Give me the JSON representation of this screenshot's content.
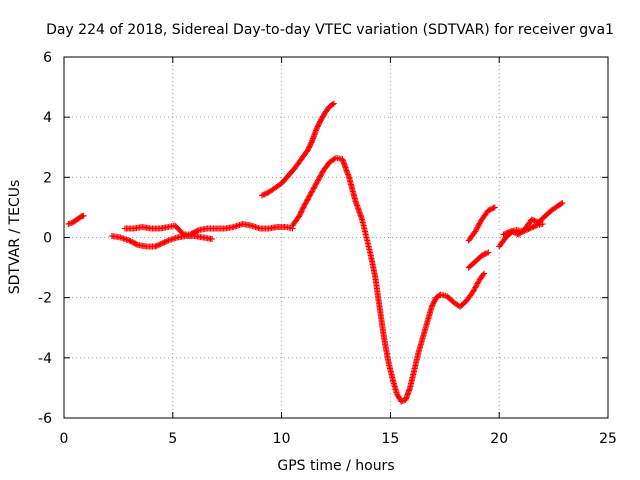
{
  "chart_data": {
    "type": "scatter",
    "title": "Day 224 of 2018, Sidereal Day-to-day VTEC variation (SDTVAR) for receiver gva1",
    "xlabel": "GPS time / hours",
    "ylabel": "SDTVAR / TECUs",
    "xlim": [
      0,
      25
    ],
    "ylim": [
      -6,
      6
    ],
    "xticks": [
      0,
      5,
      10,
      15,
      20,
      25
    ],
    "yticks": [
      -6,
      -4,
      -2,
      0,
      2,
      4,
      6
    ],
    "grid": true,
    "marker": "+",
    "color": "#ff0000",
    "series": [
      {
        "segments": [
          [
            [
              0.2,
              0.45
            ],
            [
              0.4,
              0.5
            ],
            [
              0.6,
              0.6
            ],
            [
              0.8,
              0.7
            ],
            [
              0.9,
              0.72
            ]
          ],
          [
            [
              2.2,
              0.05
            ],
            [
              2.6,
              0.0
            ],
            [
              3.0,
              -0.1
            ],
            [
              3.4,
              -0.25
            ],
            [
              3.8,
              -0.3
            ],
            [
              4.2,
              -0.3
            ],
            [
              4.5,
              -0.2
            ],
            [
              4.8,
              -0.1
            ],
            [
              5.2,
              0.0
            ],
            [
              5.6,
              0.05
            ],
            [
              6.0,
              0.05
            ],
            [
              6.4,
              0.0
            ],
            [
              6.8,
              -0.05
            ]
          ],
          [
            [
              2.8,
              0.3
            ],
            [
              3.2,
              0.3
            ],
            [
              3.6,
              0.35
            ],
            [
              4.0,
              0.3
            ],
            [
              4.4,
              0.3
            ],
            [
              4.8,
              0.35
            ],
            [
              5.1,
              0.4
            ],
            [
              5.5,
              0.1
            ],
            [
              5.8,
              0.1
            ],
            [
              6.2,
              0.25
            ],
            [
              6.6,
              0.3
            ],
            [
              7.0,
              0.3
            ],
            [
              7.4,
              0.3
            ],
            [
              7.8,
              0.35
            ],
            [
              8.2,
              0.45
            ],
            [
              8.6,
              0.4
            ],
            [
              9.0,
              0.3
            ],
            [
              9.4,
              0.3
            ],
            [
              9.8,
              0.35
            ],
            [
              10.2,
              0.35
            ],
            [
              10.5,
              0.3
            ]
          ],
          [
            [
              10.5,
              0.4
            ],
            [
              10.8,
              0.7
            ],
            [
              11.0,
              1.0
            ],
            [
              11.3,
              1.4
            ],
            [
              11.6,
              1.8
            ],
            [
              11.9,
              2.2
            ],
            [
              12.2,
              2.5
            ],
            [
              12.5,
              2.65
            ],
            [
              12.8,
              2.6
            ],
            [
              13.1,
              2.0
            ],
            [
              13.4,
              1.2
            ],
            [
              13.7,
              0.6
            ],
            [
              13.9,
              0.0
            ],
            [
              14.1,
              -0.6
            ],
            [
              14.3,
              -1.3
            ],
            [
              14.5,
              -2.3
            ],
            [
              14.7,
              -3.3
            ],
            [
              14.9,
              -4.1
            ],
            [
              15.1,
              -4.7
            ],
            [
              15.3,
              -5.2
            ],
            [
              15.5,
              -5.45
            ],
            [
              15.7,
              -5.4
            ],
            [
              15.9,
              -5.0
            ],
            [
              16.1,
              -4.4
            ],
            [
              16.3,
              -3.8
            ],
            [
              16.5,
              -3.3
            ],
            [
              16.7,
              -2.8
            ],
            [
              16.9,
              -2.3
            ],
            [
              17.1,
              -2.0
            ],
            [
              17.3,
              -1.9
            ],
            [
              17.6,
              -1.95
            ],
            [
              17.9,
              -2.15
            ],
            [
              18.2,
              -2.3
            ],
            [
              18.5,
              -2.1
            ],
            [
              18.8,
              -1.8
            ],
            [
              19.1,
              -1.4
            ],
            [
              19.3,
              -1.2
            ]
          ],
          [
            [
              9.1,
              1.4
            ],
            [
              9.4,
              1.5
            ],
            [
              9.7,
              1.65
            ],
            [
              10.0,
              1.8
            ],
            [
              10.3,
              2.05
            ],
            [
              10.6,
              2.3
            ],
            [
              10.9,
              2.6
            ],
            [
              11.2,
              2.9
            ],
            [
              11.4,
              3.2
            ],
            [
              11.6,
              3.6
            ],
            [
              11.8,
              3.9
            ],
            [
              12.0,
              4.15
            ],
            [
              12.2,
              4.35
            ],
            [
              12.4,
              4.45
            ]
          ],
          [
            [
              18.6,
              -1.0
            ],
            [
              18.9,
              -0.8
            ],
            [
              19.2,
              -0.6
            ],
            [
              19.5,
              -0.5
            ]
          ],
          [
            [
              18.6,
              -0.1
            ],
            [
              18.9,
              0.2
            ],
            [
              19.2,
              0.6
            ],
            [
              19.5,
              0.9
            ],
            [
              19.8,
              1.0
            ]
          ],
          [
            [
              20.0,
              -0.3
            ],
            [
              20.3,
              0.0
            ],
            [
              20.6,
              0.2
            ],
            [
              20.9,
              0.1
            ],
            [
              21.2,
              0.3
            ],
            [
              21.5,
              0.6
            ],
            [
              21.8,
              0.5
            ],
            [
              22.1,
              0.7
            ],
            [
              22.4,
              0.9
            ],
            [
              22.7,
              1.05
            ],
            [
              22.9,
              1.15
            ]
          ],
          [
            [
              20.2,
              0.1
            ],
            [
              20.5,
              0.2
            ],
            [
              20.8,
              0.25
            ],
            [
              21.1,
              0.2
            ],
            [
              21.4,
              0.3
            ],
            [
              21.7,
              0.4
            ],
            [
              22.0,
              0.45
            ]
          ]
        ]
      }
    ]
  }
}
